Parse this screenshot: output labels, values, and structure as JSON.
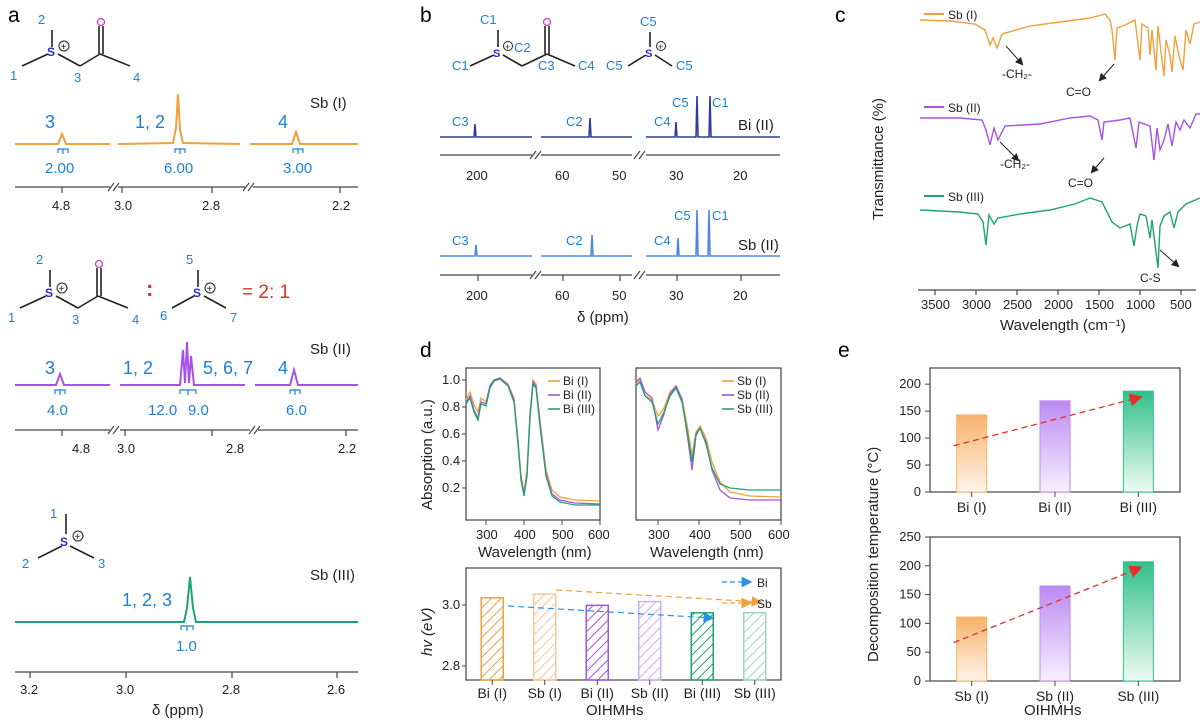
{
  "colors": {
    "sb1": "#f0a03c",
    "sb2": "#a652e6",
    "sb3": "#1fa372",
    "bi": "#2f3c9e",
    "sbii_c": "#4f86e6",
    "blue": "#1f7fd6",
    "red": "#e0312b",
    "legend_bi": "#2a8fe6",
    "legend_sb": "#f0a03c"
  },
  "panel_labels": {
    "a": "a",
    "b": "b",
    "c": "c",
    "d": "d",
    "e": "e"
  },
  "a": {
    "mol1": {
      "nums": [
        "2",
        "1",
        "3",
        "4"
      ]
    },
    "mol2": {
      "nums": [
        "2",
        "1",
        "3",
        "4",
        "5",
        "6",
        "7"
      ],
      "colon": ":",
      "ratio": "= 2: 1"
    },
    "mol3": {
      "nums": [
        "1",
        "2",
        "3"
      ]
    },
    "s1": {
      "name": "Sb (I)",
      "peaks": [
        "3",
        "1, 2",
        "4"
      ],
      "integrals": [
        "2.00",
        "6.00",
        "3.00"
      ],
      "ticks": [
        "4.8",
        "3.0",
        "2.8",
        "2.2"
      ]
    },
    "s2": {
      "name": "Sb (II)",
      "peaks": [
        "3",
        "1, 2",
        "5, 6, 7",
        "4"
      ],
      "integrals": [
        "4.0",
        "12.0",
        "9.0",
        "6.0"
      ],
      "ticks": [
        "4.8",
        "3.0",
        "2.8",
        "2.2"
      ]
    },
    "s3": {
      "name": "Sb (III)",
      "peaks": [
        "1, 2, 3"
      ],
      "integrals": [
        "1.0"
      ],
      "ticks": [
        "3.2",
        "3.0",
        "2.8",
        "2.6"
      ],
      "xlabel": "δ (ppm)"
    }
  },
  "b": {
    "labels": [
      "C1",
      "C2",
      "C3",
      "C4",
      "C1",
      "C5",
      "C5",
      "C5"
    ],
    "bi": {
      "name": "Bi (II)",
      "peaks": [
        "C3",
        "C2",
        "C4",
        "C5",
        "C1"
      ]
    },
    "sb": {
      "name": "Sb (II)",
      "peaks": [
        "C3",
        "C2",
        "C4",
        "C5",
        "C1"
      ]
    },
    "ticks": [
      "200",
      "60",
      "50",
      "30",
      "20"
    ],
    "xlabel": "δ (ppm)"
  },
  "c": {
    "ylabel": "Transmittance (%)",
    "xlabel": "Wavelength (cm⁻¹)",
    "traces": [
      "Sb (I)",
      "Sb (II)",
      "Sb (III)"
    ],
    "ann": [
      "-CH₂-",
      "C=O",
      "-CH₂-",
      "C=O",
      "C-S"
    ],
    "ticks": [
      "3500",
      "3000",
      "2500",
      "2000",
      "1500",
      "1000",
      "500"
    ]
  },
  "d": {
    "ylabel": "Absorption (a.u.)",
    "left": {
      "xlabel": "Wavelength (nm)",
      "legend": [
        "Bi (I)",
        "Bi (II)",
        "Bi (III)"
      ],
      "xticks": [
        "300",
        "400",
        "500",
        "600"
      ],
      "yticks": [
        "0.2",
        "0.4",
        "0.6",
        "0.8",
        "1.0"
      ]
    },
    "right": {
      "xlabel": "Wavelength (nm)",
      "legend": [
        "Sb (I)",
        "Sb (II)",
        "Sb (III)"
      ],
      "xticks": [
        "300",
        "400",
        "500",
        "600"
      ]
    },
    "bar_ylabel": "hv (eV)",
    "bar_xlabel": "OIHMHs",
    "bar_legend": [
      "Bi",
      "Sb"
    ],
    "bar_yticks": [
      "2.8",
      "3.0"
    ]
  },
  "e": {
    "ylabel": "Decomposition temperature (°C)",
    "xlabel": "OIHMHs",
    "yticks": [
      "0",
      "50",
      "100",
      "150",
      "200",
      "250"
    ]
  },
  "chart_data": [
    {
      "type": "line",
      "panel": "c",
      "title": "",
      "xlabel": "Wavelength (cm-1)",
      "ylabel": "Transmittance (%)",
      "xlim": [
        3800,
        400
      ],
      "series": [
        {
          "name": "Sb (I)"
        },
        {
          "name": "Sb (II)"
        },
        {
          "name": "Sb (III)"
        }
      ]
    },
    {
      "type": "line",
      "panel": "d-left",
      "xlabel": "Wavelength (nm)",
      "ylabel": "Absorption (a.u.)",
      "xlim": [
        200,
        600
      ],
      "ylim": [
        0,
        1.05
      ],
      "series": [
        {
          "name": "Bi (I)"
        },
        {
          "name": "Bi (II)"
        },
        {
          "name": "Bi (III)"
        }
      ]
    },
    {
      "type": "line",
      "panel": "d-right",
      "xlabel": "Wavelength (nm)",
      "xlim": [
        200,
        600
      ],
      "series": [
        {
          "name": "Sb (I)"
        },
        {
          "name": "Sb (II)"
        },
        {
          "name": "Sb (III)"
        }
      ]
    },
    {
      "type": "bar",
      "panel": "d-bottom",
      "categories": [
        "Bi (I)",
        "Sb (I)",
        "Bi (II)",
        "Sb (II)",
        "Bi (III)",
        "Sb (III)"
      ],
      "values": [
        3.02,
        3.03,
        3.0,
        3.01,
        2.98,
        2.98
      ],
      "ylim": [
        2.8,
        3.1
      ],
      "xlabel": "OIHMHs",
      "ylabel": "hv (eV)"
    },
    {
      "type": "bar",
      "panel": "e-top",
      "categories": [
        "Bi (I)",
        "Bi (II)",
        "Bi (III)"
      ],
      "values": [
        143,
        169,
        187
      ],
      "ylim": [
        0,
        230
      ],
      "ylabel": "Decomposition temperature (°C)"
    },
    {
      "type": "bar",
      "panel": "e-bottom",
      "categories": [
        "Sb (I)",
        "Sb (II)",
        "Sb (III)"
      ],
      "values": [
        111,
        165,
        207
      ],
      "ylim": [
        0,
        250
      ],
      "xlabel": "OIHMHs",
      "ylabel": "Decomposition temperature (°C)"
    }
  ]
}
